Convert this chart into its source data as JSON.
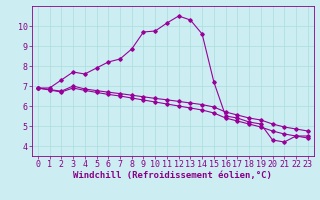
{
  "xlabel": "Windchill (Refroidissement éolien,°C)",
  "background_color": "#cceef2",
  "line_color": "#990099",
  "grid_color": "#aadddd",
  "xlim": [
    -0.5,
    23.5
  ],
  "ylim": [
    3.5,
    11.0
  ],
  "xticks": [
    0,
    1,
    2,
    3,
    4,
    5,
    6,
    7,
    8,
    9,
    10,
    11,
    12,
    13,
    14,
    15,
    16,
    17,
    18,
    19,
    20,
    21,
    22,
    23
  ],
  "yticks": [
    4,
    5,
    6,
    7,
    8,
    9,
    10
  ],
  "line1_x": [
    0,
    1,
    2,
    3,
    4,
    5,
    6,
    7,
    8,
    9,
    10,
    11,
    12,
    13,
    14,
    15,
    16,
    17,
    18,
    19,
    20,
    21,
    22,
    23
  ],
  "line1_y": [
    6.9,
    6.9,
    7.3,
    7.7,
    7.6,
    7.9,
    8.2,
    8.35,
    8.85,
    9.7,
    9.75,
    10.15,
    10.5,
    10.3,
    9.6,
    7.2,
    5.5,
    5.4,
    5.2,
    5.1,
    4.3,
    4.2,
    4.5,
    4.5
  ],
  "line2_x": [
    0,
    1,
    2,
    3,
    4,
    5,
    6,
    7,
    8,
    9,
    10,
    11,
    12,
    13,
    14,
    15,
    16,
    17,
    18,
    19,
    20,
    21,
    22,
    23
  ],
  "line2_y": [
    6.9,
    6.82,
    6.74,
    7.0,
    6.85,
    6.77,
    6.69,
    6.62,
    6.54,
    6.46,
    6.38,
    6.31,
    6.23,
    6.15,
    6.07,
    5.95,
    5.7,
    5.55,
    5.4,
    5.3,
    5.1,
    4.95,
    4.85,
    4.75
  ],
  "line3_x": [
    0,
    1,
    2,
    3,
    4,
    5,
    6,
    7,
    8,
    9,
    10,
    11,
    12,
    13,
    14,
    15,
    16,
    17,
    18,
    19,
    20,
    21,
    22,
    23
  ],
  "line3_y": [
    6.9,
    6.8,
    6.7,
    6.9,
    6.78,
    6.68,
    6.58,
    6.5,
    6.4,
    6.3,
    6.2,
    6.1,
    6.0,
    5.9,
    5.8,
    5.65,
    5.4,
    5.25,
    5.1,
    4.95,
    4.75,
    4.6,
    4.5,
    4.4
  ],
  "tick_fontsize": 6,
  "label_fontsize": 6.5
}
